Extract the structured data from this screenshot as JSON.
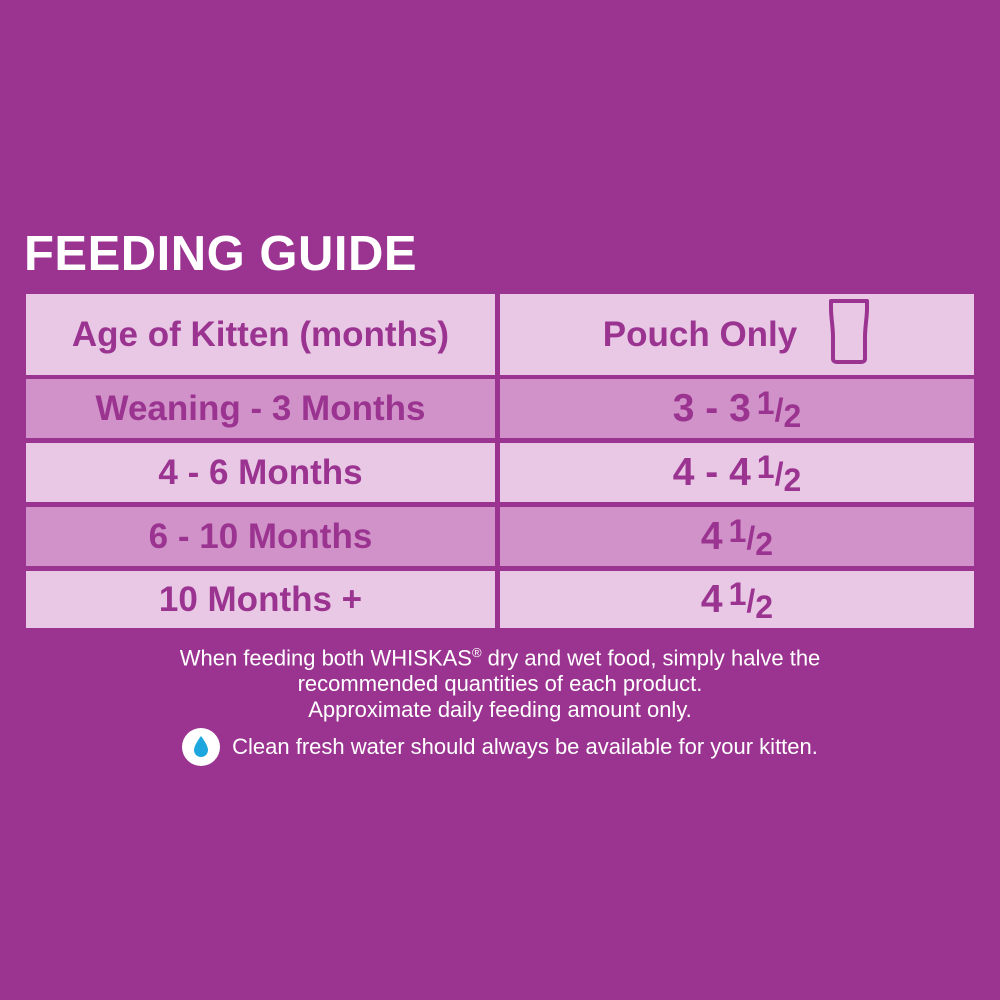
{
  "title": "FEEDING GUIDE",
  "table": {
    "headers": {
      "age": "Age of Kitten (months)",
      "pouch": "Pouch Only"
    },
    "rows": [
      {
        "age": "Weaning - 3 Months",
        "qty_whole": "3 - 3",
        "qty_num": "1",
        "qty_den": "2"
      },
      {
        "age": "4 - 6 Months",
        "qty_whole": "4 - 4",
        "qty_num": "1",
        "qty_den": "2"
      },
      {
        "age": "6 - 10 Months",
        "qty_whole": "4",
        "qty_num": "1",
        "qty_den": "2"
      },
      {
        "age": "10 Months +",
        "qty_whole": "4",
        "qty_num": "1",
        "qty_den": "2"
      }
    ]
  },
  "notes": {
    "line1_a": "When feeding both WHISKAS",
    "line1_reg": "®",
    "line1_b": " dry and wet food, simply halve the",
    "line2": "recommended quantities of each product.",
    "line3": "Approximate daily feeding amount only.",
    "water": "Clean fresh water should always be available for your kitten."
  },
  "icons": {
    "pouch": "pouch-icon",
    "water": "water-drop-icon"
  },
  "colors": {
    "background": "#9b3491",
    "cell_light": "#e8c8e5",
    "cell_dark": "#d092c8",
    "text_accent": "#9b3491",
    "water_drop": "#1ea7df"
  }
}
